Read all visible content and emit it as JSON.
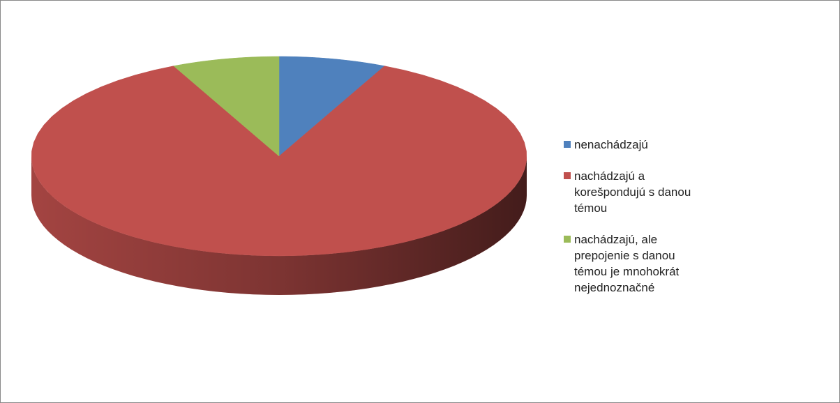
{
  "chart_data": {
    "type": "pie3d",
    "categories": [
      "nenachádzajú",
      "nachádzajú a korešpondujú s danou témou",
      "nachádzajú, ale prepojenie s danou témou je mnohokrát nejednoznačné"
    ],
    "values": [
      7,
      86,
      7
    ],
    "colors": [
      "#4f81bd",
      "#c0504d",
      "#9bbb59"
    ],
    "legend": "right"
  }
}
